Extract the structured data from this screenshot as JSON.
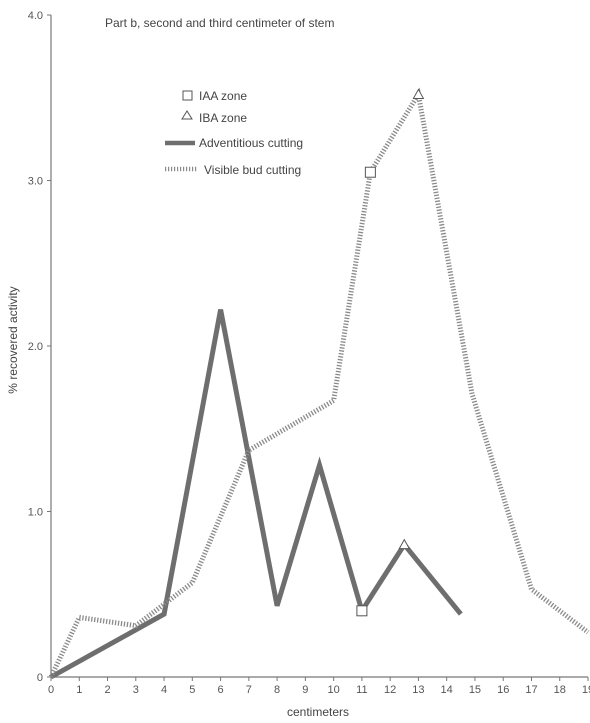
{
  "chart_data": {
    "type": "line",
    "title": "Part b, second and third centimeter of stem",
    "xlabel": "centimeters",
    "ylabel": "% recovered activity",
    "xlim": [
      0,
      19
    ],
    "ylim": [
      0,
      4.0
    ],
    "x_ticks": [
      "0",
      "1",
      "2",
      "3",
      "4",
      "5",
      "6",
      "7",
      "8",
      "9",
      "10",
      "11",
      "12",
      "13",
      "14",
      "15",
      "16",
      "17",
      "18",
      "19"
    ],
    "y_ticks": [
      "0",
      "1.0",
      "2.0",
      "3.0",
      "4.0"
    ],
    "legend": {
      "placement": "top-left",
      "entries": [
        "IAA zone",
        "IBA zone",
        "Adventitious cutting",
        "Visible bud cutting"
      ]
    },
    "series": [
      {
        "name": "Adventitious cutting",
        "style": "solid",
        "color": "#6e6e6e",
        "points": [
          [
            0,
            0
          ],
          [
            4,
            0.38
          ],
          [
            6,
            2.22
          ],
          [
            8,
            0.43
          ],
          [
            9.5,
            1.28
          ],
          [
            11,
            0.4
          ],
          [
            12.5,
            0.8
          ],
          [
            14.5,
            0.38
          ]
        ]
      },
      {
        "name": "Visible bud cutting",
        "style": "dotted",
        "color": "#8a8a8a",
        "points": [
          [
            0,
            0
          ],
          [
            1,
            0.36
          ],
          [
            3,
            0.31
          ],
          [
            5,
            0.57
          ],
          [
            7,
            1.37
          ],
          [
            10,
            1.67
          ],
          [
            11.3,
            3.05
          ],
          [
            13,
            3.52
          ],
          [
            14.9,
            1.71
          ],
          [
            17,
            0.53
          ],
          [
            19,
            0.27
          ]
        ]
      }
    ],
    "markers": [
      {
        "zone": "IAA zone",
        "symbol": "square",
        "x": 11.3,
        "y": 3.05
      },
      {
        "zone": "IAA zone",
        "symbol": "square",
        "x": 11,
        "y": 0.4
      },
      {
        "zone": "IBA zone",
        "symbol": "triangle",
        "x": 13,
        "y": 3.52
      },
      {
        "zone": "IBA zone",
        "symbol": "triangle",
        "x": 12.5,
        "y": 0.8
      }
    ]
  }
}
